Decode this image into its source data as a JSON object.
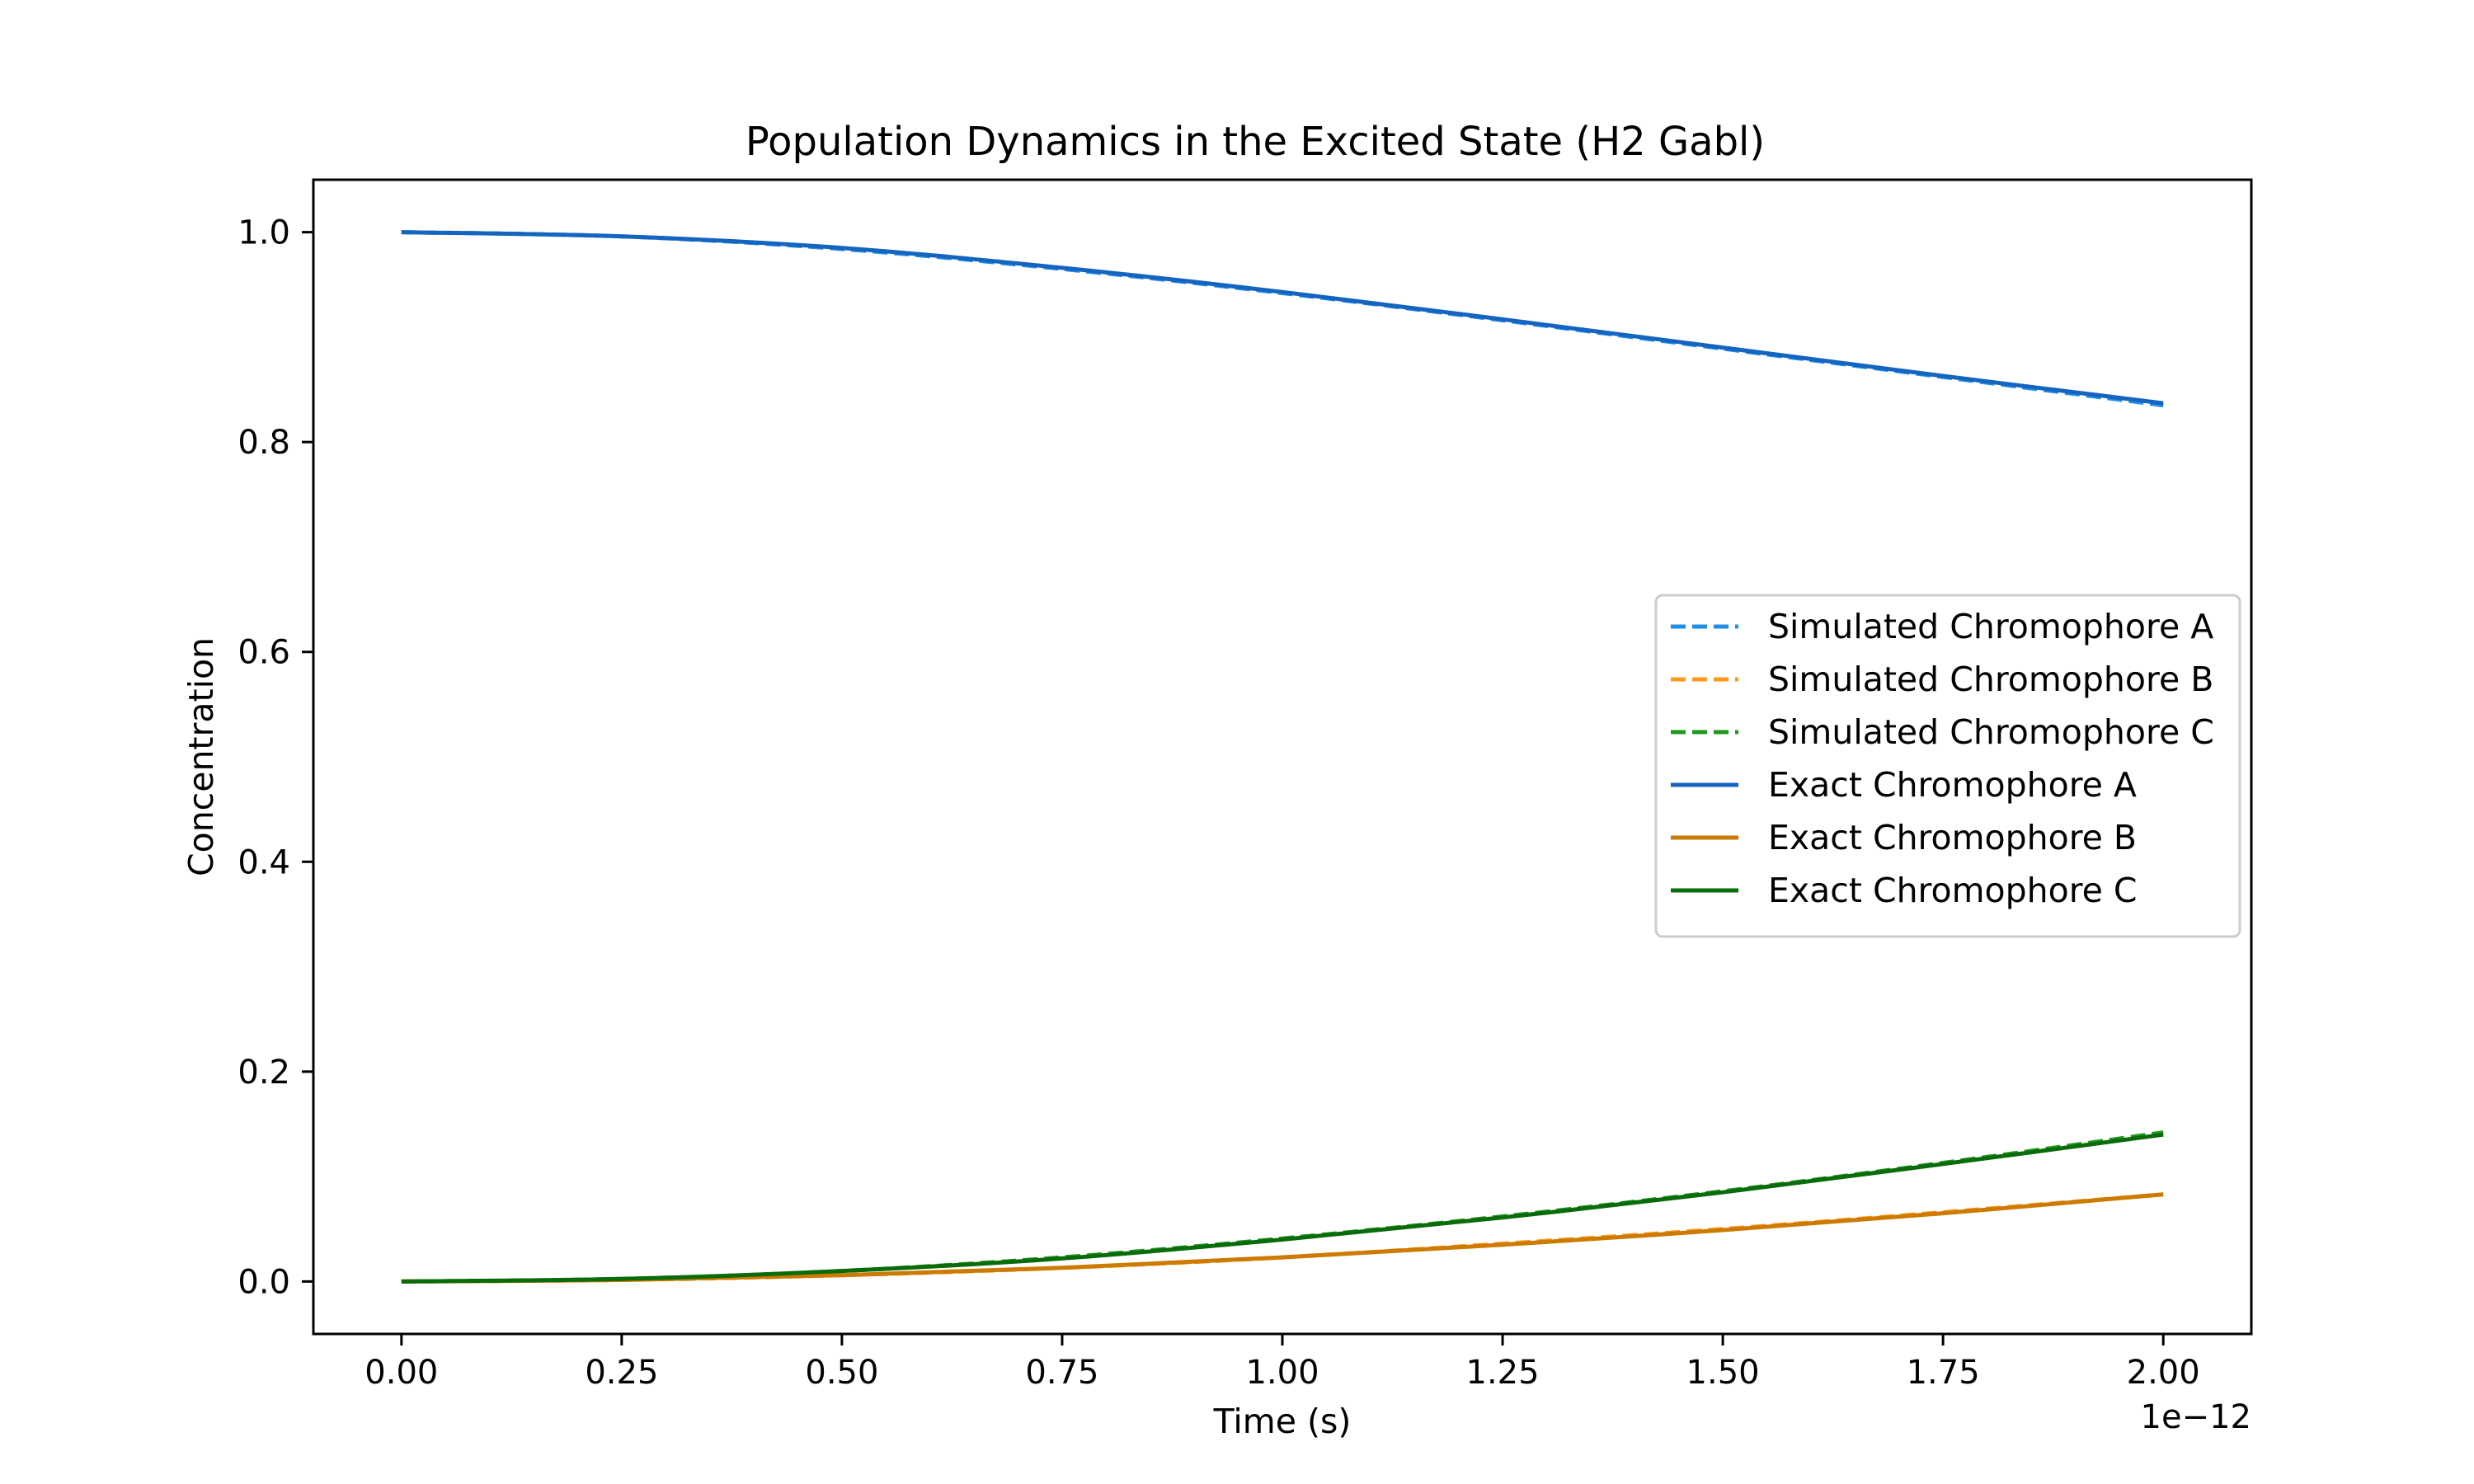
{
  "chart_data": {
    "type": "line",
    "title": "Population Dynamics in the Excited State (H2 Gabl)",
    "xlabel": "Time (s)",
    "ylabel": "Concentration",
    "x_offset_label": "1e−12",
    "xlim": [
      -0.1,
      2.1
    ],
    "ylim": [
      -0.05,
      1.05
    ],
    "x_ticks": [
      0.0,
      0.25,
      0.5,
      0.75,
      1.0,
      1.25,
      1.5,
      1.75,
      2.0
    ],
    "x_tick_labels": [
      "0.00",
      "0.25",
      "0.50",
      "0.75",
      "1.00",
      "1.25",
      "1.50",
      "1.75",
      "2.00"
    ],
    "y_ticks": [
      0.0,
      0.2,
      0.4,
      0.6,
      0.8,
      1.0
    ],
    "y_tick_labels": [
      "0.0",
      "0.2",
      "0.4",
      "0.6",
      "0.8",
      "1.0"
    ],
    "grid": false,
    "legend_position": "center-right",
    "x": [
      0.0,
      0.25,
      0.5,
      0.75,
      1.0,
      1.25,
      1.5,
      1.75,
      2.0
    ],
    "series": [
      {
        "name": "Simulated Chromophore A",
        "style": "dashed",
        "color": "#1f8fe8",
        "values": [
          1.0,
          0.996,
          0.984,
          0.965,
          0.942,
          0.916,
          0.889,
          0.862,
          0.835
        ]
      },
      {
        "name": "Simulated Chromophore B",
        "style": "dashed",
        "color": "#ff9a1a",
        "values": [
          0.0,
          0.0015,
          0.006,
          0.013,
          0.023,
          0.036,
          0.05,
          0.066,
          0.083
        ]
      },
      {
        "name": "Simulated Chromophore C",
        "style": "dashed",
        "color": "#1f9a1f",
        "values": [
          0.0,
          0.0025,
          0.01,
          0.023,
          0.041,
          0.062,
          0.086,
          0.113,
          0.142
        ]
      },
      {
        "name": "Exact Chromophore A",
        "style": "solid",
        "color": "#1565c0",
        "values": [
          1.0,
          0.996,
          0.985,
          0.966,
          0.943,
          0.917,
          0.89,
          0.863,
          0.837
        ]
      },
      {
        "name": "Exact Chromophore B",
        "style": "solid",
        "color": "#cc7a00",
        "values": [
          0.0,
          0.0015,
          0.006,
          0.013,
          0.023,
          0.035,
          0.049,
          0.065,
          0.083
        ]
      },
      {
        "name": "Exact Chromophore C",
        "style": "solid",
        "color": "#0a6b0a",
        "values": [
          0.0,
          0.0025,
          0.01,
          0.022,
          0.04,
          0.061,
          0.085,
          0.112,
          0.14
        ]
      }
    ]
  }
}
